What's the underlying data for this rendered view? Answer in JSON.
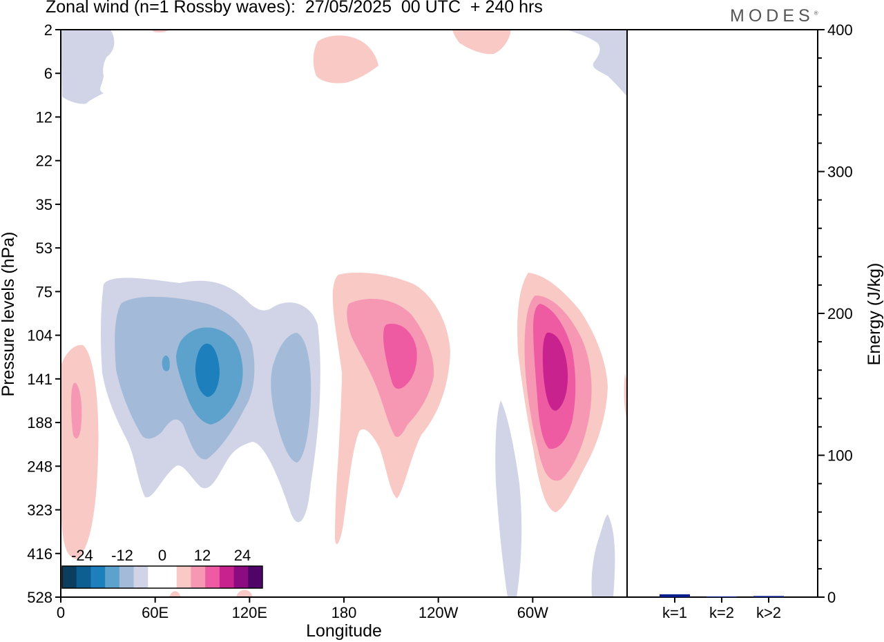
{
  "header": {
    "title": "Zonal wind (n=1 Rossby waves):  27/05/2025  00 UTC  + 240 hrs",
    "brand": "MODES",
    "brand_mark": "®"
  },
  "chart_data": [
    {
      "type": "heatmap",
      "title": "Zonal wind (n=1 Rossby waves):  27/05/2025  00 UTC  + 240 hrs",
      "xlabel": "Longitude",
      "ylabel": "Pressure levels (hPa)",
      "x_ticks": [
        "0",
        "60E",
        "120E",
        "180",
        "120W",
        "60W"
      ],
      "y_ticks": [
        "2",
        "6",
        "12",
        "22",
        "35",
        "53",
        "75",
        "104",
        "141",
        "188",
        "248",
        "323",
        "416",
        "528"
      ],
      "colorbar": {
        "labels": [
          "-24",
          "-12",
          "0",
          "12",
          "24"
        ],
        "levels": [
          -30,
          -25,
          -20,
          -15,
          -10,
          -5,
          0,
          5,
          10,
          15,
          20,
          25,
          30
        ],
        "colors": [
          "#0b3d5e",
          "#0d5f93",
          "#1e7fbd",
          "#5da1cd",
          "#a3bad9",
          "#d1d4e6",
          "#ffffff",
          "#ffffff",
          "#f9c9c5",
          "#f697b4",
          "#ee5ba2",
          "#c7228e",
          "#8c0b80",
          "#4e0567"
        ]
      },
      "features": [
        {
          "name": "easterly anomaly near 90E",
          "sign": "negative",
          "lon": 90,
          "pressure_hPa": 141,
          "peak": -25
        },
        {
          "name": "easterly anomaly near 150E",
          "sign": "negative",
          "lon": 150,
          "pressure_hPa": 188,
          "peak": -12
        },
        {
          "name": "westerly anomaly near 160W",
          "sign": "positive",
          "lon": 200,
          "pressure_hPa": 120,
          "peak": 15
        },
        {
          "name": "westerly anomaly near 50W",
          "sign": "positive",
          "lon": 310,
          "pressure_hPa": 141,
          "peak": 22
        },
        {
          "name": "westerly anomaly near 10E",
          "sign": "positive",
          "lon": 10,
          "pressure_hPa": 188,
          "peak": 10
        }
      ]
    },
    {
      "type": "bar",
      "categories": [
        "k=1",
        "k=2",
        "k>2"
      ],
      "values": [
        2,
        0.3,
        0.8
      ],
      "ylabel": "Energy (J/kg)",
      "ylim": [
        0,
        400
      ],
      "y_ticks": [
        "0",
        "100",
        "200",
        "300",
        "400"
      ],
      "bar_color": "#0b1f8c"
    }
  ]
}
